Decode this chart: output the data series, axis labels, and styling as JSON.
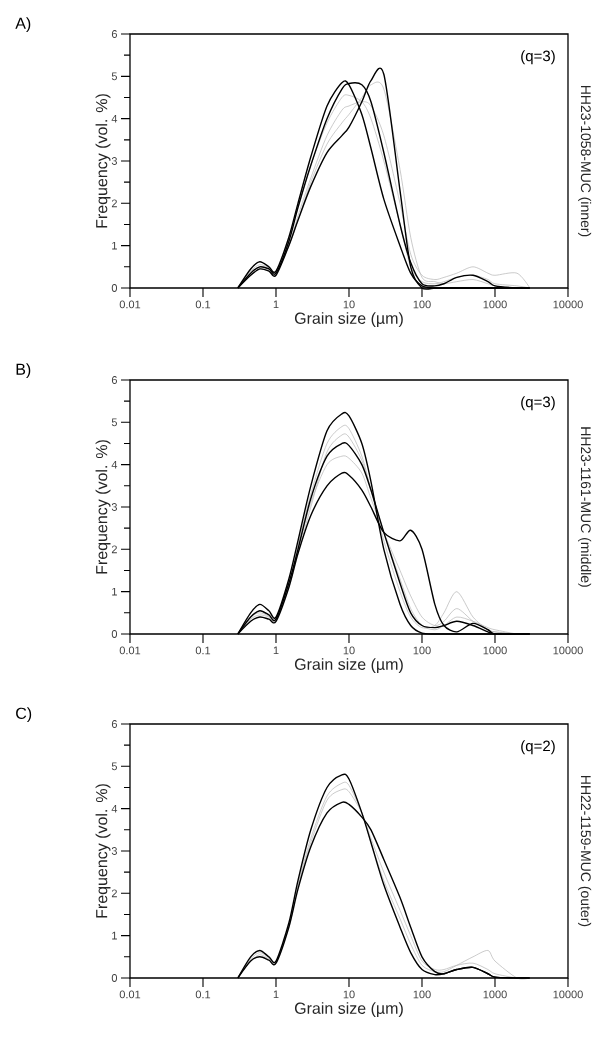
{
  "chart_data": [
    {
      "type": "line",
      "title": "A)",
      "xlabel": "Grain size (µm)",
      "ylabel": "Frequency (vol. %)",
      "log": "x",
      "xlim": [
        0.01,
        10000
      ],
      "xticks": [
        0.01,
        0.1,
        1,
        10,
        100,
        1000,
        10000
      ],
      "ylim": [
        0,
        6
      ],
      "yticks": [
        0,
        1,
        2,
        3,
        4,
        5,
        6
      ],
      "annotations": [
        "(q=3)",
        "HH23-1058-MUC (inner)"
      ],
      "x": [
        0.3,
        0.45,
        0.6,
        0.8,
        1,
        1.5,
        2,
        3,
        5,
        8,
        10,
        15,
        20,
        30,
        50,
        70,
        100,
        150,
        200,
        300,
        500,
        800,
        1000,
        2000,
        3000
      ],
      "series": [
        {
          "color": "#b4b4b4",
          "values": [
            0,
            0.35,
            0.5,
            0.45,
            0.35,
            1.0,
            1.7,
            2.6,
            3.6,
            4.2,
            4.3,
            4.4,
            4.3,
            3.6,
            2.0,
            0.8,
            0.3,
            0.2,
            0.25,
            0.35,
            0.5,
            0.35,
            0.3,
            0.35,
            0
          ]
        },
        {
          "color": "#b4b4b4",
          "values": [
            0,
            0.4,
            0.55,
            0.48,
            0.38,
            1.15,
            1.9,
            2.9,
            3.9,
            4.5,
            4.55,
            4.4,
            4.0,
            3.0,
            1.5,
            0.5,
            0.15,
            0.1,
            0.15,
            0.25,
            0.3,
            0.2,
            0.1,
            0.05,
            0
          ]
        },
        {
          "color": "#b4b4b4",
          "values": [
            0,
            0.3,
            0.45,
            0.4,
            0.32,
            1.0,
            1.6,
            2.5,
            3.4,
            3.9,
            4.1,
            4.5,
            4.8,
            4.7,
            2.8,
            1.2,
            0.25,
            0.15,
            0.1,
            0.15,
            0.2,
            0.1,
            0.05,
            0,
            0
          ]
        },
        {
          "color": "#000000",
          "values": [
            0,
            0.45,
            0.62,
            0.5,
            0.4,
            1.2,
            2.0,
            3.1,
            4.3,
            4.85,
            4.8,
            4.1,
            3.3,
            2.1,
            1.0,
            0.35,
            0.05,
            0,
            0,
            0,
            0,
            0,
            0,
            0,
            0
          ]
        },
        {
          "color": "#000000",
          "values": [
            0,
            0.35,
            0.5,
            0.45,
            0.35,
            1.1,
            1.9,
            2.9,
            4.0,
            4.7,
            4.83,
            4.8,
            4.4,
            3.2,
            1.5,
            0.6,
            0.1,
            0.05,
            0.1,
            0.25,
            0.3,
            0.15,
            0.05,
            0,
            0
          ]
        },
        {
          "color": "#000000",
          "values": [
            0,
            0.3,
            0.45,
            0.4,
            0.3,
            1.0,
            1.6,
            2.4,
            3.2,
            3.6,
            3.8,
            4.4,
            4.9,
            5.05,
            2.3,
            0.5,
            0,
            0,
            0,
            0,
            0,
            0,
            0,
            0,
            0
          ]
        }
      ]
    },
    {
      "type": "line",
      "title": "B)",
      "xlabel": "Grain size (µm)",
      "ylabel": "Frequency (vol. %)",
      "log": "x",
      "xlim": [
        0.01,
        10000
      ],
      "xticks": [
        0.01,
        0.1,
        1,
        10,
        100,
        1000,
        10000
      ],
      "ylim": [
        0,
        6
      ],
      "yticks": [
        0,
        1,
        2,
        3,
        4,
        5,
        6
      ],
      "annotations": [
        "(q=3)",
        "HH23-1161-MUC (middle)"
      ],
      "x": [
        0.3,
        0.45,
        0.6,
        0.8,
        1,
        1.5,
        2,
        3,
        5,
        8,
        10,
        15,
        20,
        30,
        50,
        70,
        100,
        150,
        200,
        300,
        500,
        800,
        1000,
        2000,
        3000
      ],
      "series": [
        {
          "color": "#b4b4b4",
          "values": [
            0,
            0.4,
            0.55,
            0.45,
            0.35,
            1.2,
            2.1,
            3.3,
            4.5,
            4.9,
            4.85,
            4.2,
            3.4,
            2.2,
            1.0,
            0.4,
            0.15,
            0.2,
            0.5,
            1.0,
            0.4,
            0.1,
            0.05,
            0,
            0
          ]
        },
        {
          "color": "#b4b4b4",
          "values": [
            0,
            0.4,
            0.5,
            0.42,
            0.33,
            1.15,
            2.0,
            3.1,
            4.0,
            4.2,
            4.15,
            3.8,
            3.2,
            2.4,
            1.5,
            0.9,
            0.4,
            0.2,
            0.3,
            0.6,
            0.3,
            0.1,
            0.05,
            0,
            0
          ]
        },
        {
          "color": "#b4b4b4",
          "values": [
            0,
            0.35,
            0.45,
            0.4,
            0.32,
            1.1,
            1.9,
            3.0,
            4.3,
            4.7,
            4.65,
            4.1,
            3.4,
            2.4,
            1.3,
            0.6,
            0.2,
            0.1,
            0.2,
            0.4,
            0.3,
            0.15,
            0.1,
            0,
            0
          ]
        },
        {
          "color": "#000000",
          "values": [
            0,
            0.5,
            0.7,
            0.55,
            0.4,
            1.3,
            2.2,
            3.5,
            4.8,
            5.2,
            5.15,
            4.5,
            3.6,
            2.0,
            0.7,
            0.2,
            0.02,
            0,
            0,
            0,
            0,
            0,
            0,
            0,
            0
          ]
        },
        {
          "color": "#000000",
          "values": [
            0,
            0.4,
            0.55,
            0.45,
            0.35,
            1.2,
            2.0,
            3.2,
            4.2,
            4.5,
            4.45,
            4.0,
            3.4,
            2.4,
            1.2,
            0.5,
            0.2,
            0.15,
            0.2,
            0.3,
            0.2,
            0.05,
            0,
            0,
            0
          ]
        },
        {
          "color": "#000000",
          "values": [
            0,
            0.3,
            0.4,
            0.35,
            0.3,
            1.1,
            1.9,
            2.8,
            3.5,
            3.8,
            3.75,
            3.4,
            3.0,
            2.4,
            2.2,
            2.45,
            2.0,
            0.7,
            0.2,
            0.05,
            0.25,
            0.1,
            0,
            0,
            0
          ]
        }
      ]
    },
    {
      "type": "line",
      "title": "C)",
      "xlabel": "Grain size (µm)",
      "ylabel": "Frequency (vol. %)",
      "log": "x",
      "xlim": [
        0.01,
        10000
      ],
      "xticks": [
        0.01,
        0.1,
        1,
        10,
        100,
        1000,
        10000
      ],
      "ylim": [
        0,
        6
      ],
      "yticks": [
        0,
        1,
        2,
        3,
        4,
        5,
        6
      ],
      "annotations": [
        "(q=2)",
        "HH22-1159-MUC (outer)"
      ],
      "x": [
        0.3,
        0.45,
        0.6,
        0.8,
        1,
        1.5,
        2,
        3,
        5,
        8,
        10,
        15,
        20,
        30,
        50,
        70,
        100,
        150,
        200,
        300,
        500,
        800,
        1000,
        2000,
        3000
      ],
      "series": [
        {
          "color": "#b4b4b4",
          "values": [
            0,
            0.45,
            0.6,
            0.48,
            0.38,
            1.25,
            2.2,
            3.3,
            4.3,
            4.6,
            4.55,
            3.9,
            3.2,
            2.3,
            1.4,
            0.8,
            0.3,
            0.15,
            0.15,
            0.3,
            0.5,
            0.65,
            0.4,
            0,
            0
          ]
        },
        {
          "color": "#b4b4b4",
          "values": [
            0,
            0.4,
            0.55,
            0.45,
            0.36,
            1.2,
            2.15,
            3.2,
            4.2,
            4.45,
            4.4,
            3.9,
            3.3,
            2.5,
            1.6,
            1.0,
            0.4,
            0.2,
            0.2,
            0.3,
            0.35,
            0.2,
            0.1,
            0,
            0
          ]
        },
        {
          "color": "#000000",
          "values": [
            0,
            0.5,
            0.65,
            0.5,
            0.4,
            1.3,
            2.3,
            3.5,
            4.5,
            4.8,
            4.7,
            3.9,
            3.2,
            2.2,
            1.2,
            0.6,
            0.2,
            0.08,
            0.1,
            0.2,
            0.25,
            0.1,
            0.02,
            0,
            0
          ]
        },
        {
          "color": "#000000",
          "values": [
            0,
            0.4,
            0.5,
            0.42,
            0.35,
            1.2,
            2.1,
            3.1,
            3.9,
            4.15,
            4.1,
            3.8,
            3.5,
            2.8,
            1.9,
            1.2,
            0.5,
            0.15,
            0.1,
            0.2,
            0.25,
            0.1,
            0.02,
            0,
            0
          ]
        }
      ]
    }
  ]
}
